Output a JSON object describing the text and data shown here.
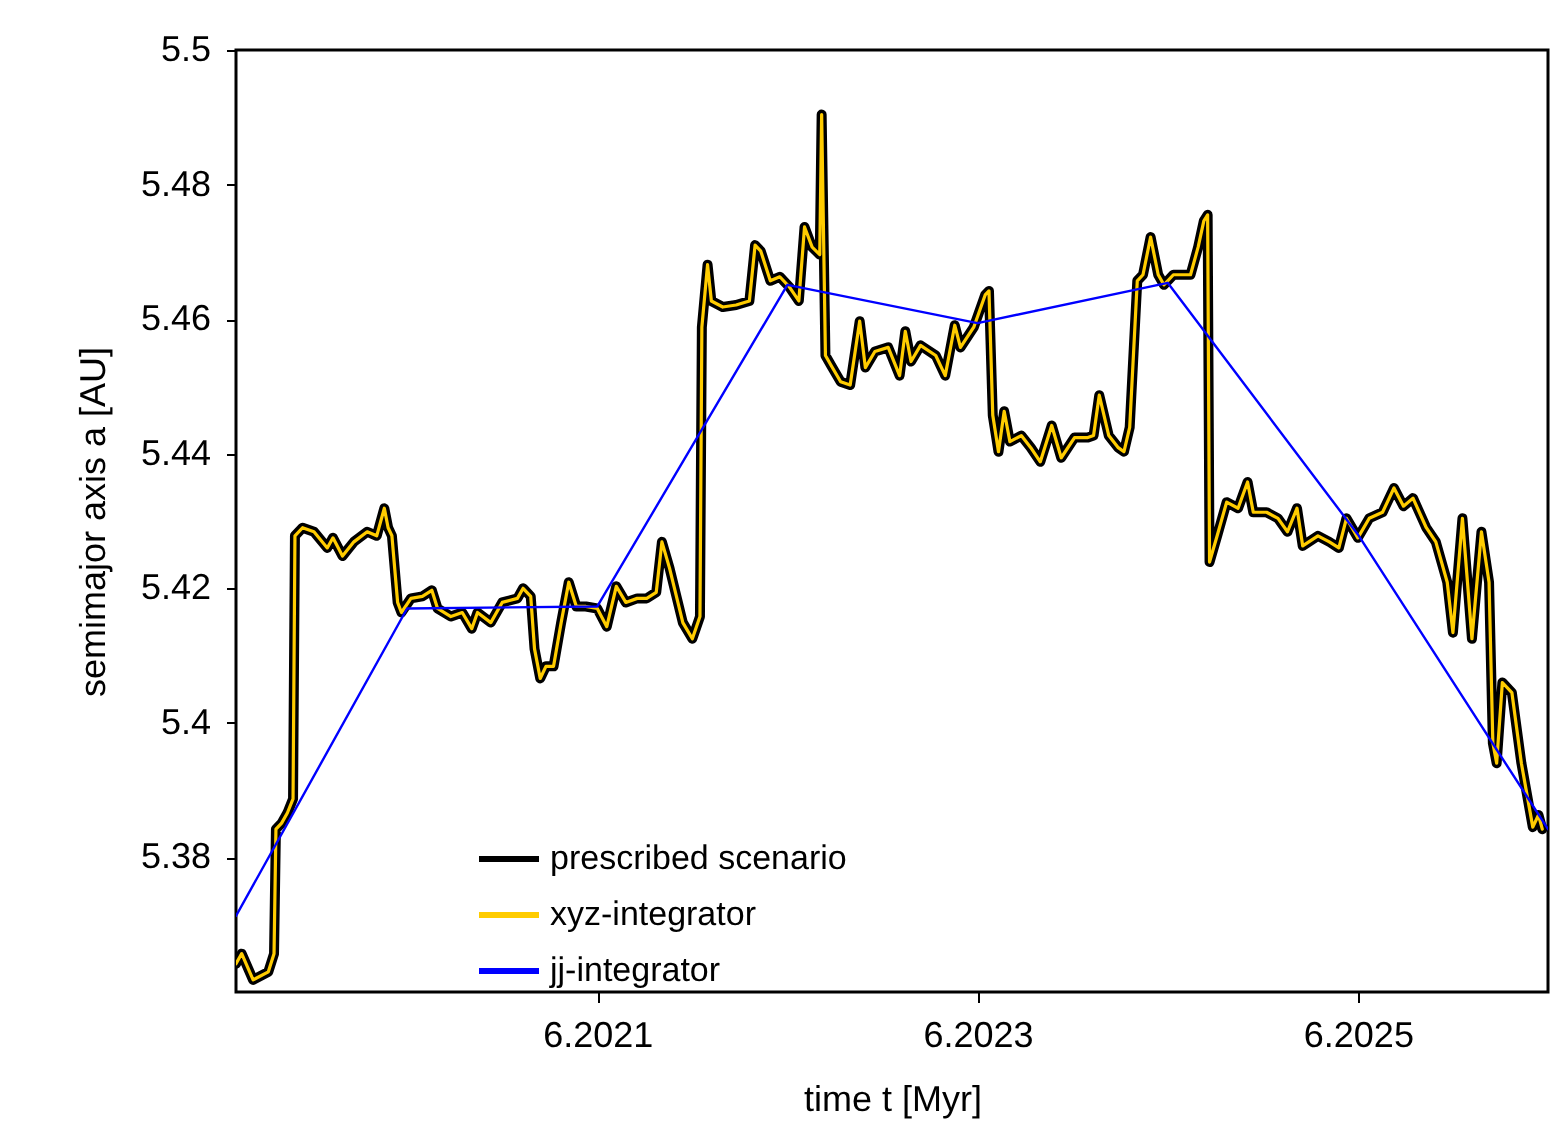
{
  "chart_data": {
    "type": "line",
    "xlabel": "time t [Myr]",
    "ylabel": "semimajor axis a [AU]",
    "xlim": [
      6.20191,
      6.2026
    ],
    "xticks": [
      6.2021,
      6.2023,
      6.2025
    ],
    "ylim": [
      5.36,
      5.5
    ],
    "yticks": [
      5.38,
      5.4,
      5.42,
      5.44,
      5.46,
      5.48,
      5.5
    ],
    "grid": false,
    "legend": "bottom",
    "series": [
      {
        "name": "prescribed scenario",
        "color": "#000000",
        "x": [
          6.20191,
          6.201913,
          6.201919,
          6.201927,
          6.20193,
          6.201931,
          6.201934,
          6.201937,
          6.20194,
          6.201941,
          6.201945,
          6.201951,
          6.201958,
          6.201961,
          6.201966,
          6.201972,
          6.201979,
          6.201984,
          6.201988,
          6.20199,
          6.201992,
          6.201995,
          6.201997,
          6.202002,
          6.202008,
          6.202013,
          6.202016,
          6.202023,
          6.202029,
          6.202034,
          6.202037,
          6.202044,
          6.20205,
          6.202058,
          6.202061,
          6.202065,
          6.202067,
          6.20207,
          6.202073,
          6.202077,
          6.202081,
          6.202085,
          6.202089,
          6.202094,
          6.2021,
          6.202105,
          6.20211,
          6.202115,
          6.202121,
          6.202126,
          6.202131,
          6.202134,
          6.202138,
          6.202145,
          6.20215,
          6.202154,
          6.202155,
          6.202158,
          6.20216,
          6.202166,
          6.202173,
          6.20218,
          6.202183,
          6.202186,
          6.202191,
          6.202196,
          6.202201,
          6.202206,
          6.202209,
          6.202213,
          6.202217,
          6.202218,
          6.20222,
          6.202223,
          6.202228,
          6.202233,
          6.202238,
          6.202241,
          6.202246,
          6.202253,
          6.202259,
          6.202262,
          6.202265,
          6.20227,
          6.202278,
          6.202283,
          6.202288,
          6.202291,
          6.202298,
          6.202304,
          6.202306,
          6.202308,
          6.202311,
          6.202314,
          6.202317,
          6.202323,
          6.202328,
          6.202333,
          6.202339,
          6.202344,
          6.202351,
          6.202358,
          6.202361,
          6.202364,
          6.202369,
          6.202374,
          6.202377,
          6.20238,
          6.202384,
          6.202387,
          6.202391,
          6.202395,
          6.202398,
          6.202403,
          6.202412,
          6.202416,
          6.202419,
          6.202421,
          6.202422,
          6.202426,
          6.202431,
          6.202437,
          6.202442,
          6.202445,
          6.202452,
          6.202458,
          6.202463,
          6.202468,
          6.202471,
          6.202479,
          6.202485,
          6.20249,
          6.202494,
          6.2025,
          6.202506,
          6.202513,
          6.202519,
          6.202524,
          6.202529,
          6.202536,
          6.202541,
          6.202547,
          6.20255,
          6.202555,
          6.20256,
          6.202565,
          6.202569,
          6.202571,
          6.202573,
          6.202576,
          6.202581,
          6.202586,
          6.202592,
          6.202595,
          6.202597
        ],
        "values": [
          5.3642,
          5.3657,
          5.3618,
          5.363,
          5.3657,
          5.3842,
          5.3851,
          5.3866,
          5.3887,
          5.4278,
          5.429,
          5.4284,
          5.426,
          5.4275,
          5.4248,
          5.4269,
          5.4284,
          5.4278,
          5.4319,
          5.429,
          5.4278,
          5.4179,
          5.4164,
          5.4185,
          5.4188,
          5.4197,
          5.417,
          5.4158,
          5.4164,
          5.414,
          5.4164,
          5.4149,
          5.4179,
          5.4185,
          5.42,
          5.4188,
          5.411,
          5.4066,
          5.4084,
          5.4084,
          5.4149,
          5.4209,
          5.4173,
          5.4173,
          5.417,
          5.4143,
          5.4203,
          5.4179,
          5.4185,
          5.4185,
          5.4194,
          5.4269,
          5.423,
          5.4149,
          5.4125,
          5.4158,
          5.4588,
          5.4681,
          5.4627,
          5.4618,
          5.4621,
          5.4627,
          5.471,
          5.4701,
          5.4657,
          5.4663,
          5.4648,
          5.4627,
          5.4737,
          5.4707,
          5.4696,
          5.4904,
          5.4546,
          5.4531,
          5.4507,
          5.4502,
          5.4597,
          5.4528,
          5.4552,
          5.4558,
          5.4516,
          5.4582,
          5.4537,
          5.4561,
          5.4546,
          5.4516,
          5.4591,
          5.4558,
          5.4588,
          5.4636,
          5.4642,
          5.4457,
          5.4403,
          5.4463,
          5.4418,
          5.4427,
          5.4409,
          5.4388,
          5.4442,
          5.4394,
          5.4424,
          5.4424,
          5.4427,
          5.4487,
          5.4427,
          5.4409,
          5.4403,
          5.4439,
          5.4657,
          5.4666,
          5.4722,
          5.4666,
          5.4651,
          5.4666,
          5.4666,
          5.4707,
          5.4746,
          5.4755,
          5.4239,
          5.4278,
          5.4328,
          5.4319,
          5.4358,
          5.4313,
          5.4313,
          5.4304,
          5.4284,
          5.4319,
          5.4263,
          5.4278,
          5.4269,
          5.426,
          5.4304,
          5.4275,
          5.4304,
          5.4313,
          5.4349,
          5.4322,
          5.4334,
          5.429,
          5.4269,
          5.4209,
          5.4134,
          5.4304,
          5.4125,
          5.4284,
          5.4209,
          5.397,
          5.394,
          5.406,
          5.4045,
          5.394,
          5.3845,
          5.3863,
          5.3842
        ]
      },
      {
        "name": "xyz-integrator",
        "color": "#ffcc00",
        "x": [
          6.20191,
          6.201913,
          6.201919,
          6.201927,
          6.20193,
          6.201931,
          6.201934,
          6.201937,
          6.20194,
          6.201941,
          6.201945,
          6.201951,
          6.201958,
          6.201961,
          6.201966,
          6.201972,
          6.201979,
          6.201984,
          6.201988,
          6.20199,
          6.201992,
          6.201995,
          6.201997,
          6.202002,
          6.202008,
          6.202013,
          6.202016,
          6.202023,
          6.202029,
          6.202034,
          6.202037,
          6.202044,
          6.20205,
          6.202058,
          6.202061,
          6.202065,
          6.202067,
          6.20207,
          6.202073,
          6.202077,
          6.202081,
          6.202085,
          6.202089,
          6.202094,
          6.2021,
          6.202105,
          6.20211,
          6.202115,
          6.202121,
          6.202126,
          6.202131,
          6.202134,
          6.202138,
          6.202145,
          6.20215,
          6.202154,
          6.202155,
          6.202158,
          6.20216,
          6.202166,
          6.202173,
          6.20218,
          6.202183,
          6.202186,
          6.202191,
          6.202196,
          6.202201,
          6.202206,
          6.202209,
          6.202213,
          6.202217,
          6.202218,
          6.20222,
          6.202223,
          6.202228,
          6.202233,
          6.202238,
          6.202241,
          6.202246,
          6.202253,
          6.202259,
          6.202262,
          6.202265,
          6.20227,
          6.202278,
          6.202283,
          6.202288,
          6.202291,
          6.202298,
          6.202304,
          6.202306,
          6.202308,
          6.202311,
          6.202314,
          6.202317,
          6.202323,
          6.202328,
          6.202333,
          6.202339,
          6.202344,
          6.202351,
          6.202358,
          6.202361,
          6.202364,
          6.202369,
          6.202374,
          6.202377,
          6.20238,
          6.202384,
          6.202387,
          6.202391,
          6.202395,
          6.202398,
          6.202403,
          6.202412,
          6.202416,
          6.202419,
          6.202421,
          6.202422,
          6.202426,
          6.202431,
          6.202437,
          6.202442,
          6.202445,
          6.202452,
          6.202458,
          6.202463,
          6.202468,
          6.202471,
          6.202479,
          6.202485,
          6.20249,
          6.202494,
          6.2025,
          6.202506,
          6.202513,
          6.202519,
          6.202524,
          6.202529,
          6.202536,
          6.202541,
          6.202547,
          6.20255,
          6.202555,
          6.20256,
          6.202565,
          6.202569,
          6.202571,
          6.202573,
          6.202576,
          6.202581,
          6.202586,
          6.202592,
          6.202595,
          6.202597
        ],
        "values": [
          5.3642,
          5.3657,
          5.3618,
          5.363,
          5.3657,
          5.3842,
          5.3851,
          5.3866,
          5.3887,
          5.4278,
          5.429,
          5.4284,
          5.426,
          5.4275,
          5.4248,
          5.4269,
          5.4284,
          5.4278,
          5.4319,
          5.429,
          5.4278,
          5.4179,
          5.4164,
          5.4185,
          5.4188,
          5.4197,
          5.417,
          5.4158,
          5.4164,
          5.414,
          5.4164,
          5.4149,
          5.4179,
          5.4185,
          5.42,
          5.4188,
          5.411,
          5.4066,
          5.4084,
          5.4084,
          5.4149,
          5.4209,
          5.4173,
          5.4173,
          5.417,
          5.4143,
          5.4203,
          5.4179,
          5.4185,
          5.4185,
          5.4194,
          5.4269,
          5.423,
          5.4149,
          5.4125,
          5.4158,
          5.4588,
          5.4681,
          5.4627,
          5.4618,
          5.4621,
          5.4627,
          5.471,
          5.4701,
          5.4657,
          5.4663,
          5.4648,
          5.4627,
          5.4737,
          5.4707,
          5.4696,
          5.4904,
          5.4546,
          5.4531,
          5.4507,
          5.4502,
          5.4597,
          5.4528,
          5.4552,
          5.4558,
          5.4516,
          5.4582,
          5.4537,
          5.4561,
          5.4546,
          5.4516,
          5.4591,
          5.4558,
          5.4588,
          5.4636,
          5.4642,
          5.4457,
          5.4403,
          5.4463,
          5.4418,
          5.4427,
          5.4409,
          5.4388,
          5.4442,
          5.4394,
          5.4424,
          5.4424,
          5.4427,
          5.4487,
          5.4427,
          5.4409,
          5.4403,
          5.4439,
          5.4657,
          5.4666,
          5.4722,
          5.4666,
          5.4651,
          5.4666,
          5.4666,
          5.4707,
          5.4746,
          5.4755,
          5.4239,
          5.4278,
          5.4328,
          5.4319,
          5.4358,
          5.4313,
          5.4313,
          5.4304,
          5.4284,
          5.4319,
          5.4263,
          5.4278,
          5.4269,
          5.426,
          5.4304,
          5.4275,
          5.4304,
          5.4313,
          5.4349,
          5.4322,
          5.4334,
          5.429,
          5.4269,
          5.4209,
          5.4134,
          5.4304,
          5.4125,
          5.4284,
          5.4209,
          5.397,
          5.394,
          5.406,
          5.4045,
          5.394,
          5.3845,
          5.3863,
          5.3842
        ]
      },
      {
        "name": "jj-integrator",
        "color": "#0000ff",
        "x": [
          6.20191,
          6.202,
          6.2021,
          6.2022,
          6.2023,
          6.2024,
          6.2025,
          6.2026
        ],
        "values": [
          5.3713,
          5.417,
          5.4173,
          5.4651,
          5.4594,
          5.4654,
          5.428,
          5.3842
        ]
      }
    ]
  }
}
